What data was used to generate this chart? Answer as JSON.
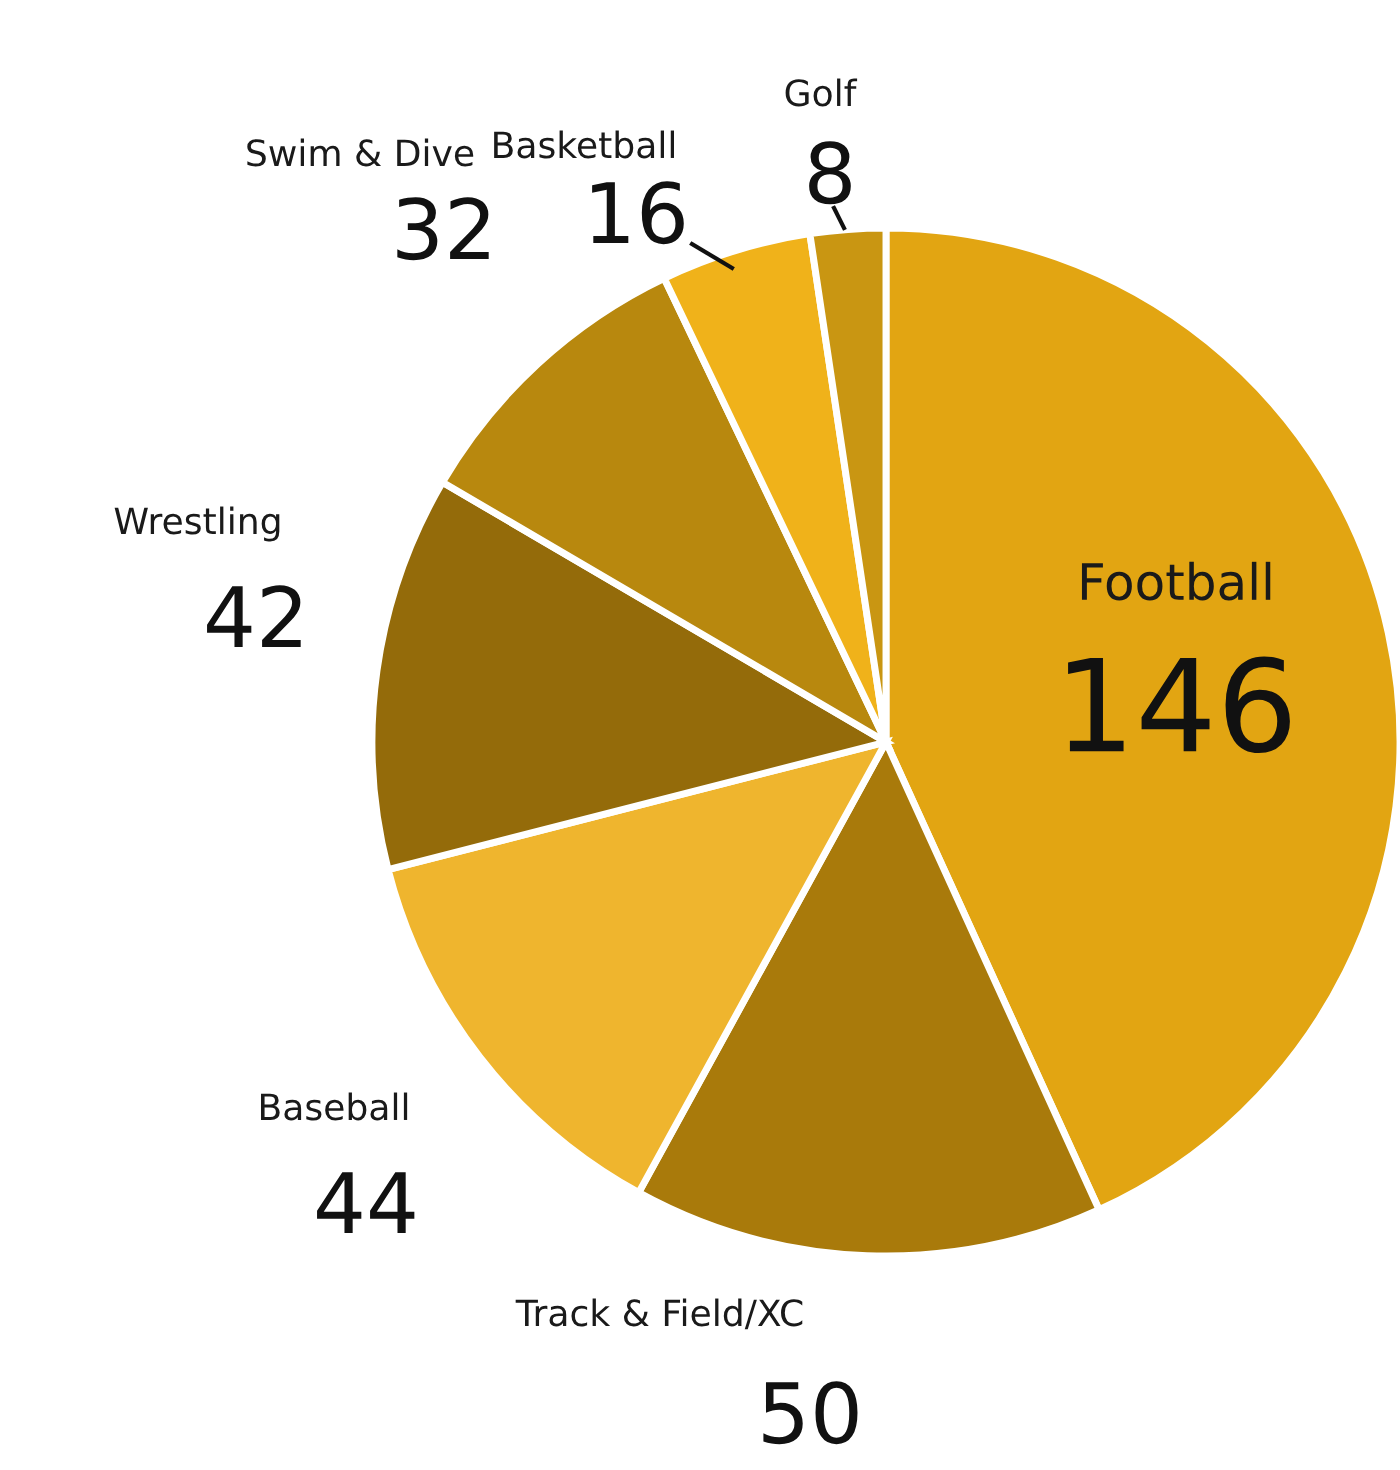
{
  "chart_data": {
    "type": "pie",
    "categories": [
      "Football",
      "Track & Field/XC",
      "Baseball",
      "Wrestling",
      "Swim & Dive",
      "Basketball",
      "Golf"
    ],
    "values": [
      146,
      50,
      44,
      42,
      32,
      16,
      8
    ],
    "colors": [
      "#e2a512",
      "#a97a0b",
      "#efb52e",
      "#946b0a",
      "#b8880e",
      "#f0b21a",
      "#c99612"
    ],
    "data_labels": true
  }
}
